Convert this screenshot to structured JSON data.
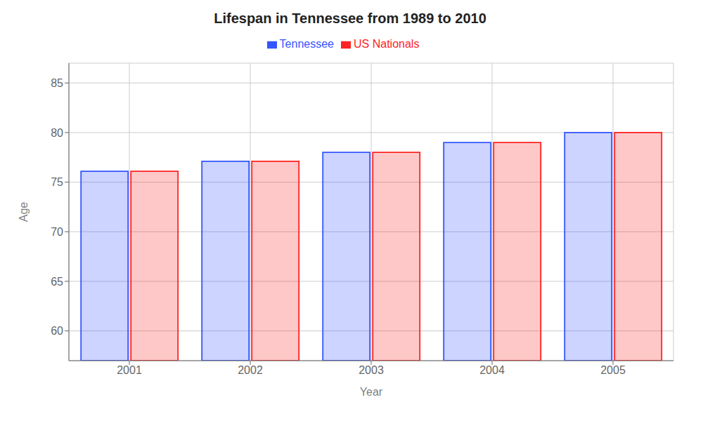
{
  "chart_data": {
    "type": "bar",
    "title": "Lifespan in Tennessee from 1989 to 2010",
    "x_label": "Year",
    "y_label": "Age",
    "categories": [
      "2001",
      "2002",
      "2003",
      "2004",
      "2005"
    ],
    "series": [
      {
        "name": "Tennessee",
        "color": "#3355ff",
        "values": [
          76.1,
          77.1,
          78.0,
          79.0,
          80.0
        ]
      },
      {
        "name": "US Nationals",
        "color": "#ff2222",
        "values": [
          76.1,
          77.1,
          78.0,
          79.0,
          80.0
        ]
      }
    ],
    "ylim": [
      57,
      87
    ],
    "yticks": [
      60,
      65,
      70,
      75,
      80,
      85
    ],
    "grid": true,
    "legend": "top"
  }
}
